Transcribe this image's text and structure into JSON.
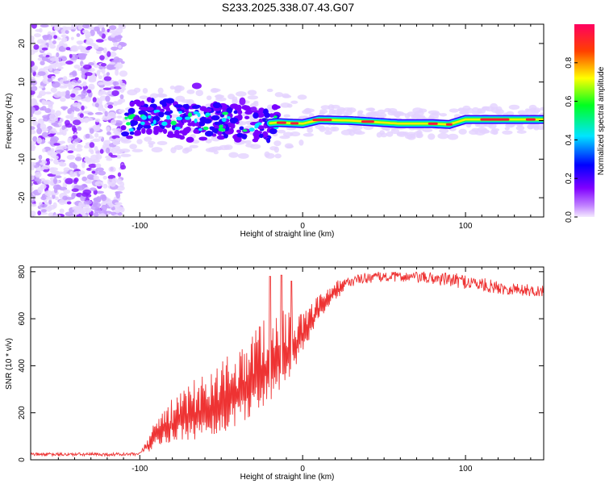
{
  "title": "S233.2025.338.07.43.G07",
  "chart_data": [
    {
      "type": "heatmap",
      "title": "S233.2025.338.07.43.G07",
      "xlabel": "Height of straight line (km)",
      "ylabel": "Frequency (Hz)",
      "xlim": [
        -167,
        148
      ],
      "ylim": [
        -25,
        25
      ],
      "xticks": [
        -100,
        0,
        100
      ],
      "xtick_labels": [
        "-100",
        "0",
        "100"
      ],
      "yticks": [
        -20,
        -10,
        0,
        10,
        20
      ],
      "ytick_labels": [
        "-20",
        "-10",
        "0",
        "10",
        "20"
      ],
      "colorbar": {
        "label": "Normalized spectral amplitude",
        "range": [
          0,
          1
        ],
        "ticks": [
          0.0,
          0.2,
          0.4,
          0.6,
          0.8
        ],
        "tick_labels": [
          "0.0",
          "0.2",
          "0.4",
          "0.6",
          "0.8"
        ],
        "colors": [
          "#f4eaff",
          "#8000ff",
          "#0000ff",
          "#00e5ff",
          "#00ff20",
          "#ffff00",
          "#ff4000",
          "#ff0060"
        ]
      },
      "ridge": {
        "description_points_x": [
          -110,
          -90,
          -70,
          -50,
          -30,
          -15,
          0,
          10,
          30,
          60,
          80,
          90,
          100,
          148
        ],
        "description_points_y": [
          -0.5,
          1.5,
          -0.5,
          0.0,
          -1.0,
          -0.5,
          -0.8,
          0.2,
          0.0,
          -0.8,
          -0.8,
          -1.0,
          0.3,
          0.3
        ]
      }
    },
    {
      "type": "line",
      "xlabel": "Height of straight line (km)",
      "ylabel": "SNR (10 * v/v)",
      "xlim": [
        -167,
        148
      ],
      "ylim": [
        0,
        820
      ],
      "xticks": [
        -100,
        0,
        100
      ],
      "xtick_labels": [
        "-100",
        "0",
        "100"
      ],
      "yticks": [
        0,
        200,
        400,
        600,
        800
      ],
      "ytick_labels": [
        "0",
        "200",
        "400",
        "600",
        "800"
      ],
      "color": "#ee3333",
      "envelope": {
        "x": [
          -167,
          -120,
          -100,
          -95,
          -90,
          -80,
          -70,
          -60,
          -50,
          -40,
          -30,
          -20,
          -10,
          0,
          10,
          20,
          30,
          40,
          60,
          80,
          100,
          120,
          148
        ],
        "low": [
          10,
          10,
          10,
          30,
          60,
          70,
          80,
          90,
          100,
          150,
          180,
          250,
          330,
          450,
          600,
          680,
          720,
          730,
          740,
          720,
          700,
          680,
          670
        ],
        "high": [
          30,
          30,
          30,
          90,
          190,
          260,
          320,
          380,
          420,
          480,
          560,
          640,
          640,
          620,
          700,
          760,
          780,
          800,
          800,
          800,
          790,
          760,
          740
        ]
      }
    }
  ]
}
